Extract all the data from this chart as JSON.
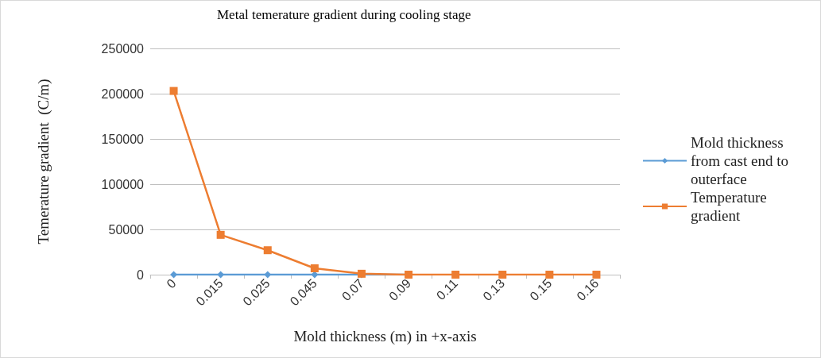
{
  "chart_data": {
    "type": "line",
    "title": "Metal temerature gradient during cooling stage",
    "xlabel": "Mold thickness (m) in +x-axis",
    "ylabel": "Temerature gradient  (C/m)",
    "categories": [
      "0",
      "0.015",
      "0.025",
      "0.045",
      "0.07",
      "0.09",
      "0.11",
      "0.13",
      "0.15",
      "0.16"
    ],
    "series": [
      {
        "name": "Mold thickness from cast end to outerface",
        "color": "#5b9bd5",
        "marker": "diamond",
        "values": [
          0,
          0,
          0,
          0,
          0,
          0,
          null,
          null,
          null,
          null
        ]
      },
      {
        "name": "Temperature gradient",
        "color": "#ed7d31",
        "marker": "square",
        "values": [
          203000,
          44000,
          27000,
          7000,
          1000,
          0,
          0,
          0,
          0,
          0
        ]
      }
    ],
    "ylim": [
      0,
      250000
    ],
    "yticks": [
      0,
      50000,
      100000,
      150000,
      200000,
      250000
    ],
    "grid": "y",
    "legend": "right"
  }
}
